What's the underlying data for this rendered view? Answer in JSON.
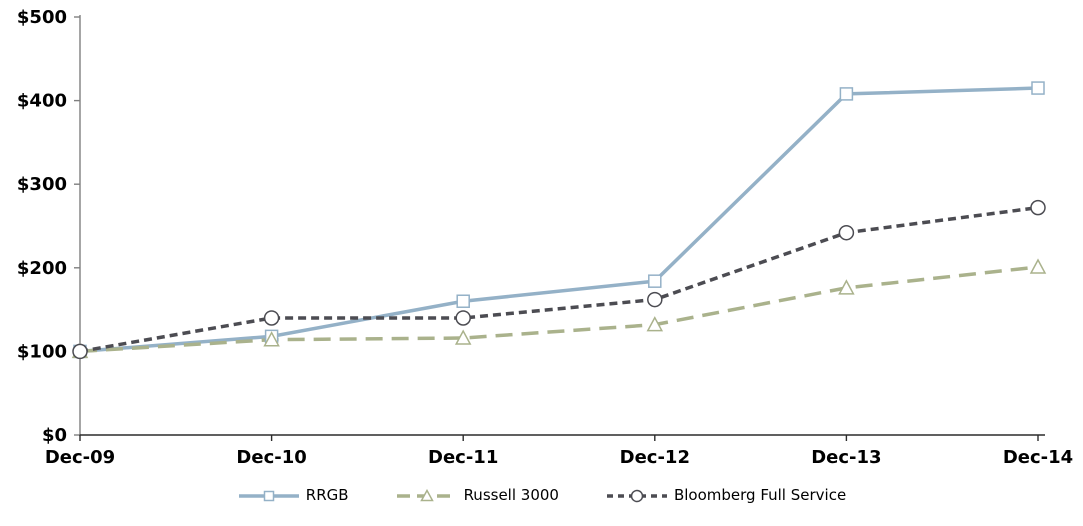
{
  "chart_data": {
    "type": "line",
    "title": "",
    "xlabel": "",
    "ylabel": "",
    "categories": [
      "Dec-09",
      "Dec-10",
      "Dec-11",
      "Dec-12",
      "Dec-13",
      "Dec-14"
    ],
    "series": [
      {
        "name": "RRGB",
        "color": "#94B1C7",
        "marker": "square",
        "dash": "solid",
        "width": 3.5,
        "values": [
          100,
          118,
          160,
          184,
          408,
          415
        ]
      },
      {
        "name": "Russell 3000",
        "color": "#AAB28C",
        "marker": "triangle",
        "dash": "long-dash",
        "width": 3.5,
        "values": [
          100,
          114,
          116,
          132,
          176,
          201
        ]
      },
      {
        "name": "Bloomberg Full Service",
        "color": "#4C4C52",
        "marker": "circle",
        "dash": "short-dash",
        "width": 3.5,
        "values": [
          100,
          140,
          140,
          162,
          242,
          272
        ]
      }
    ],
    "ylim": [
      0,
      500
    ],
    "ytick_step": 100,
    "ytick_prefix": "$",
    "ytick_labels": [
      "$0",
      "$100",
      "$200",
      "$300",
      "$400",
      "$500"
    ],
    "grid": false,
    "legend_position": "bottom",
    "style": {
      "y_axis_color": "#7F7F7F",
      "x_axis_color": "#2B2B2B",
      "text_color": "#000000",
      "marker_fill": "#FFFFFF",
      "background": "#FFFFFF"
    }
  }
}
